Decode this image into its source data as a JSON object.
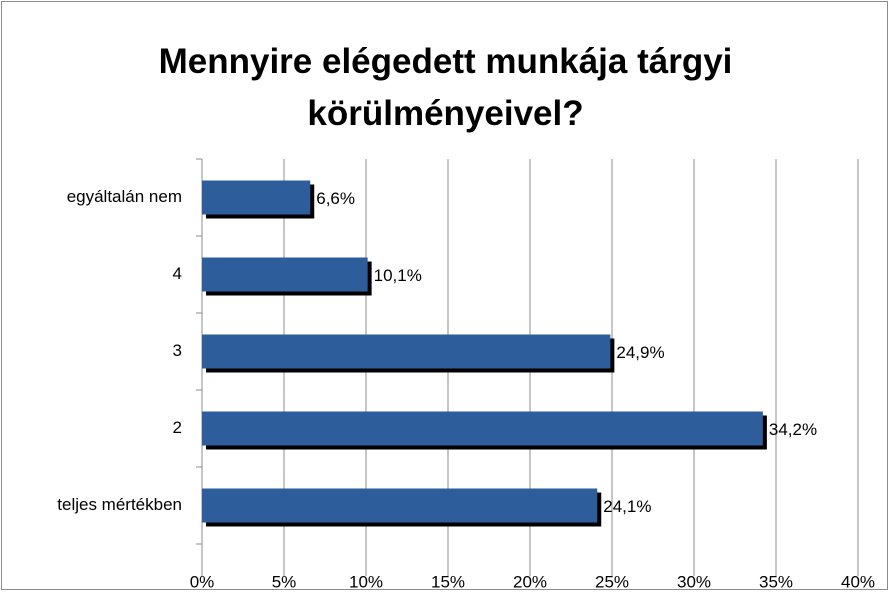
{
  "chart_data": {
    "type": "bar",
    "orientation": "horizontal",
    "title": "Mennyire elégedett munkája tárgyi körülményeivel?",
    "categories": [
      "egyáltalán nem",
      "4",
      "3",
      "2",
      "teljes mértékben"
    ],
    "values": [
      6.6,
      10.1,
      24.9,
      34.2,
      24.1
    ],
    "value_labels": [
      "6,6%",
      "10,1%",
      "24,9%",
      "34,2%",
      "24,1%"
    ],
    "color": "#2e5d9b",
    "xlim": [
      0,
      40
    ],
    "xticks": [
      {
        "value": 0,
        "label": "0%"
      },
      {
        "value": 5,
        "label": "5%"
      },
      {
        "value": 10,
        "label": "10%"
      },
      {
        "value": 15,
        "label": "15%"
      },
      {
        "value": 20,
        "label": "20%"
      },
      {
        "value": 25,
        "label": "25%"
      },
      {
        "value": 30,
        "label": "30%"
      },
      {
        "value": 35,
        "label": "35%"
      },
      {
        "value": 40,
        "label": "40%"
      }
    ],
    "grid": true
  }
}
